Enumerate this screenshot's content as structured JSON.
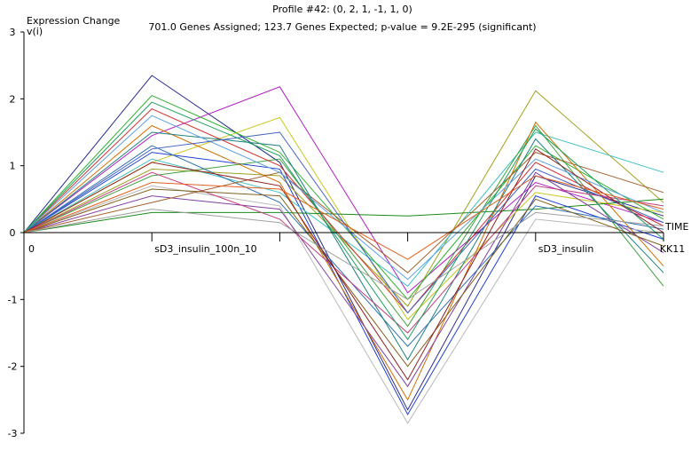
{
  "chart_data": {
    "type": "line",
    "title": "Profile #42: (0, 2, 1, -1, 1, 0)",
    "subtitle": "701.0 Genes Assigned; 123.7 Expected; p-value = 9.2E-295 (significant)",
    "subtitle_full": "701.0 Genes Assigned; 123.7 Genes Expected; p-value = 9.2E-295 (significant)",
    "ylabel_line1": "Expression Change",
    "ylabel_line2": "v(i)",
    "xlabel": "TIME",
    "ylim": [
      -3,
      3
    ],
    "yticks": [
      3,
      2,
      1,
      0,
      -1,
      -2,
      -3
    ],
    "x": [
      0,
      1,
      2,
      3,
      4,
      5
    ],
    "x_tick_labels": [
      "0",
      "sD3_insulin_100n_10",
      "",
      "",
      "sD3_insulin",
      "KK11"
    ],
    "profile_model": [
      0,
      2,
      1,
      -1,
      1,
      0
    ],
    "grid": false,
    "legend": "none",
    "series_count_assigned": 701,
    "series": [
      {
        "values": [
          0,
          2.35,
          1.05,
          -2.65,
          0.85,
          0.25
        ],
        "color": "#2b2b8c"
      },
      {
        "values": [
          0,
          1.45,
          2.18,
          -0.9,
          0.75,
          0.15
        ],
        "color": "#b020c0"
      },
      {
        "values": [
          0,
          1.05,
          1.72,
          -1.3,
          0.6,
          0.3
        ],
        "color": "#c8c820"
      },
      {
        "values": [
          0,
          0.95,
          0.85,
          -1.1,
          2.12,
          0.45
        ],
        "color": "#a0a020"
      },
      {
        "values": [
          0,
          0.3,
          0.3,
          0.25,
          0.35,
          0.5
        ],
        "color": "#1a8a1a"
      },
      {
        "values": [
          0,
          1.2,
          0.95,
          -2.72,
          0.55,
          -0.1
        ],
        "color": "#2040d0"
      },
      {
        "values": [
          0,
          0.7,
          0.4,
          -2.85,
          0.2,
          0.0
        ],
        "color": "#b8b8b8"
      },
      {
        "values": [
          0,
          1.1,
          0.6,
          -0.8,
          1.5,
          0.9
        ],
        "color": "#40c0c0"
      },
      {
        "values": [
          0,
          0.85,
          1.1,
          -1.4,
          1.6,
          -0.8
        ],
        "color": "#40a040"
      },
      {
        "values": [
          0,
          2.05,
          1.2,
          -1.0,
          1.3,
          0.2
        ],
        "color": "#30b030"
      },
      {
        "values": [
          0,
          1.85,
          1.0,
          -1.2,
          1.05,
          0.1
        ],
        "color": "#d03030"
      },
      {
        "values": [
          0,
          1.6,
          0.75,
          -2.5,
          1.65,
          -0.5
        ],
        "color": "#d07000"
      },
      {
        "values": [
          0,
          0.55,
          0.35,
          -2.3,
          0.9,
          -0.3
        ],
        "color": "#8040a0"
      },
      {
        "values": [
          0,
          1.3,
          0.45,
          -1.7,
          0.4,
          0.05
        ],
        "color": "#3070b0"
      },
      {
        "values": [
          0,
          0.45,
          0.9,
          -0.6,
          1.2,
          0.6
        ],
        "color": "#a06030"
      },
      {
        "values": [
          0,
          1.5,
          1.3,
          -1.9,
          1.4,
          -0.6
        ],
        "color": "#208080"
      },
      {
        "values": [
          0,
          0.9,
          0.2,
          -1.5,
          0.7,
          0.4
        ],
        "color": "#c04080"
      },
      {
        "values": [
          0,
          1.75,
          0.9,
          -0.7,
          1.1,
          0.3
        ],
        "color": "#60a0e0"
      },
      {
        "values": [
          0,
          0.65,
          0.55,
          -2.0,
          0.5,
          -0.2
        ],
        "color": "#806020"
      },
      {
        "values": [
          0,
          1.25,
          1.5,
          -1.2,
          0.95,
          0.15
        ],
        "color": "#4060c0"
      },
      {
        "values": [
          0,
          0.35,
          0.15,
          -1.0,
          0.3,
          0.1
        ],
        "color": "#a0a0a0"
      },
      {
        "values": [
          0,
          1.05,
          0.7,
          -2.2,
          1.25,
          0.0
        ],
        "color": "#902020"
      },
      {
        "values": [
          0,
          1.95,
          1.15,
          -1.6,
          1.55,
          -0.1
        ],
        "color": "#20a060"
      },
      {
        "values": [
          0,
          0.75,
          0.65,
          -0.4,
          0.85,
          0.35
        ],
        "color": "#e06020"
      }
    ]
  }
}
